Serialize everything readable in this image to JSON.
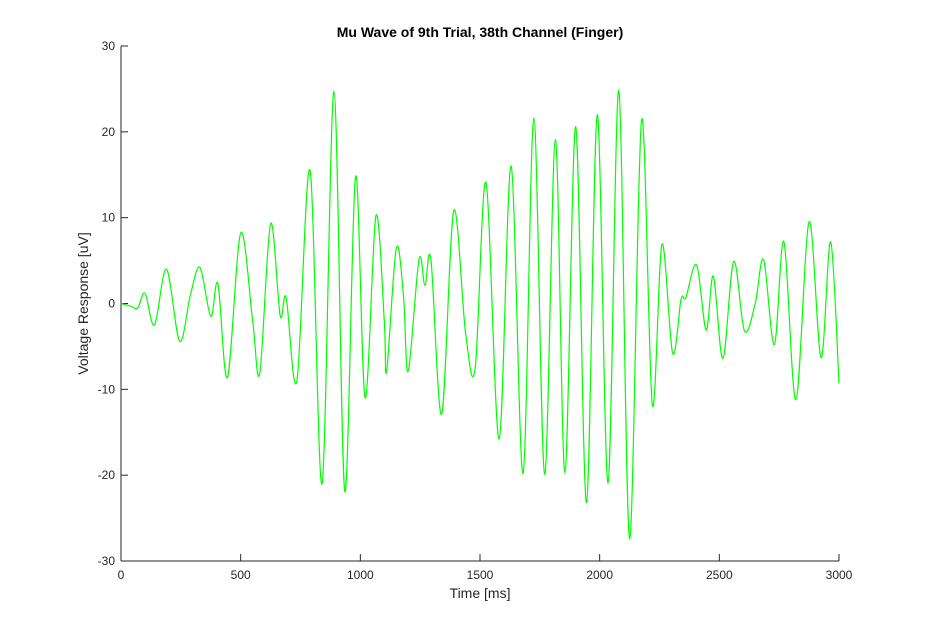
{
  "chart_data": {
    "type": "line",
    "title": "Mu Wave of 9th Trial, 38th Channel (Finger)",
    "xlabel": "Time [ms]",
    "ylabel": "Voltage Response [uV]",
    "xlim": [
      0,
      3000
    ],
    "ylim": [
      -30,
      30
    ],
    "x_ticks": [
      "0",
      "500",
      "1000",
      "1500",
      "2000",
      "2500",
      "3000"
    ],
    "y_ticks": [
      "-30",
      "-20",
      "-10",
      "0",
      "10",
      "20",
      "30"
    ],
    "grid": false,
    "legend": "none",
    "series": [
      {
        "color": "#00ff00",
        "points": [
          [
            0,
            0
          ],
          [
            40,
            -0.3
          ],
          [
            70,
            -0.5
          ],
          [
            100,
            1.2
          ],
          [
            140,
            -2.5
          ],
          [
            190,
            4
          ],
          [
            245,
            -4.4
          ],
          [
            290,
            1
          ],
          [
            330,
            4.2
          ],
          [
            375,
            -1.5
          ],
          [
            405,
            2.3
          ],
          [
            445,
            -8.6
          ],
          [
            500,
            8.2
          ],
          [
            550,
            -2
          ],
          [
            580,
            -8.1
          ],
          [
            625,
            9.3
          ],
          [
            665,
            -1.4
          ],
          [
            690,
            0.7
          ],
          [
            735,
            -9
          ],
          [
            790,
            15.5
          ],
          [
            840,
            -21
          ],
          [
            890,
            24.7
          ],
          [
            935,
            -21.9
          ],
          [
            980,
            14.8
          ],
          [
            1020,
            -11
          ],
          [
            1065,
            10.2
          ],
          [
            1100,
            -2
          ],
          [
            1110,
            -7.9
          ],
          [
            1150,
            6.4
          ],
          [
            1180,
            1
          ],
          [
            1200,
            -7.9
          ],
          [
            1245,
            5.1
          ],
          [
            1270,
            2.1
          ],
          [
            1295,
            5.1
          ],
          [
            1340,
            -12.9
          ],
          [
            1390,
            10.8
          ],
          [
            1440,
            -3.5
          ],
          [
            1480,
            -7.5
          ],
          [
            1525,
            14.1
          ],
          [
            1580,
            -15.8
          ],
          [
            1630,
            16
          ],
          [
            1680,
            -19.8
          ],
          [
            1725,
            21.6
          ],
          [
            1770,
            -19.9
          ],
          [
            1815,
            19.1
          ],
          [
            1855,
            -19.7
          ],
          [
            1900,
            20.6
          ],
          [
            1945,
            -23.2
          ],
          [
            1990,
            22
          ],
          [
            2035,
            -20.9
          ],
          [
            2080,
            24.8
          ],
          [
            2125,
            -27.4
          ],
          [
            2175,
            21.4
          ],
          [
            2220,
            -11.8
          ],
          [
            2260,
            6.9
          ],
          [
            2305,
            -5.8
          ],
          [
            2340,
            0.5
          ],
          [
            2360,
            0.7
          ],
          [
            2405,
            4.5
          ],
          [
            2445,
            -3.1
          ],
          [
            2475,
            3.2
          ],
          [
            2515,
            -6.4
          ],
          [
            2560,
            4.9
          ],
          [
            2605,
            -3.2
          ],
          [
            2650,
            0
          ],
          [
            2685,
            5.1
          ],
          [
            2730,
            -4.8
          ],
          [
            2770,
            7.2
          ],
          [
            2820,
            -11.2
          ],
          [
            2875,
            9.5
          ],
          [
            2925,
            -6.3
          ],
          [
            2965,
            7.2
          ],
          [
            3000,
            -9.3
          ]
        ]
      }
    ]
  }
}
